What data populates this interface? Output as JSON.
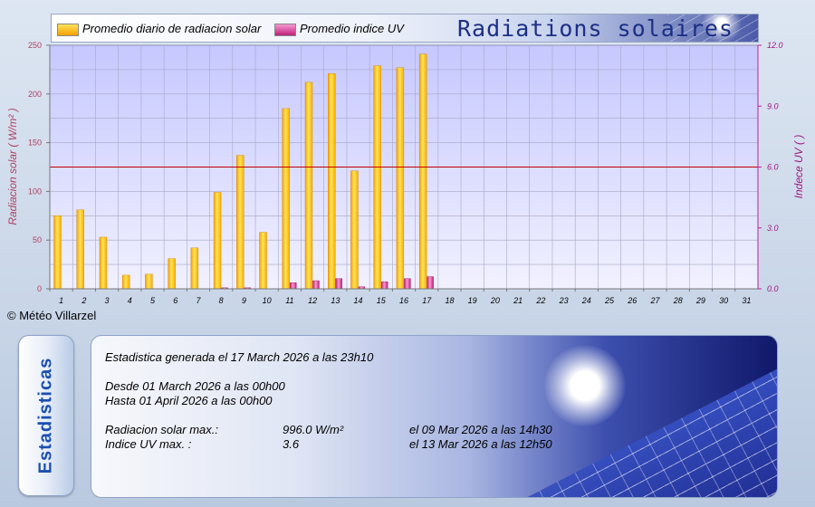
{
  "legend": {
    "solar_label": "Promedio diario de radiacion solar",
    "uv_label": "Promedio indice UV",
    "title": "Radiations solaires"
  },
  "colors": {
    "solar_bar_top": "#ffe45a",
    "solar_bar_bottom": "#f5a000",
    "uv_bar": "#d0308a",
    "plot_bg_top": "#c6c8ff",
    "plot_bg_bottom": "#f1f1ff",
    "reference_line": "#c00000",
    "right_axis": "#c020a0",
    "left_axis_label": "#b04060"
  },
  "chart_data": {
    "type": "bar",
    "categories": [
      "1",
      "2",
      "3",
      "4",
      "5",
      "6",
      "7",
      "8",
      "9",
      "10",
      "11",
      "12",
      "13",
      "14",
      "15",
      "16",
      "17",
      "18",
      "19",
      "20",
      "21",
      "22",
      "23",
      "24",
      "25",
      "26",
      "27",
      "28",
      "29",
      "30",
      "31"
    ],
    "series": [
      {
        "name": "Promedio diario de radiacion solar",
        "axis": "left",
        "values": [
          75,
          81,
          53,
          14,
          15,
          31,
          42,
          99,
          137,
          58,
          185,
          212,
          221,
          121,
          229,
          227,
          241,
          null,
          null,
          null,
          null,
          null,
          null,
          null,
          null,
          null,
          null,
          null,
          null,
          null,
          null
        ]
      },
      {
        "name": "Promedio indice UV",
        "axis": "right",
        "values": [
          0.0,
          0.0,
          0.0,
          0.0,
          0.0,
          0.0,
          0.0,
          0.05,
          0.05,
          0.0,
          0.3,
          0.4,
          0.5,
          0.1,
          0.35,
          0.5,
          0.6,
          null,
          null,
          null,
          null,
          null,
          null,
          null,
          null,
          null,
          null,
          null,
          null,
          null,
          null
        ]
      }
    ],
    "ylabel": "Radiacion solar ( W/m² )",
    "y2label": "Indece UV ( )",
    "ylim": [
      0,
      250
    ],
    "y2lim": [
      0,
      12
    ],
    "yticks": [
      "0",
      "50",
      "100",
      "150",
      "200",
      "250"
    ],
    "y2ticks": [
      "0.0",
      "3.0",
      "6.0",
      "9.0",
      "12.0"
    ],
    "reference_line_y2": 6.0,
    "grid": true,
    "legend_position": "top"
  },
  "copyright": "© Météo Villarzel",
  "stats": {
    "tab_label": "Estadisticas",
    "generated": "Estadistica generada el 17 March 2026 a las 23h10",
    "from": "Desde 01 March 2026 a las 00h00",
    "to": "Hasta 01 April 2026 a las 00h00",
    "solar_max_label": "Radiacion solar max.:",
    "solar_max_value": "996.0 W/m²",
    "solar_max_date": "el 09 Mar 2026 a las 14h30",
    "uv_max_label": "Indice UV max. :",
    "uv_max_value": "3.6",
    "uv_max_date": "el 13 Mar 2026 a las 12h50"
  }
}
